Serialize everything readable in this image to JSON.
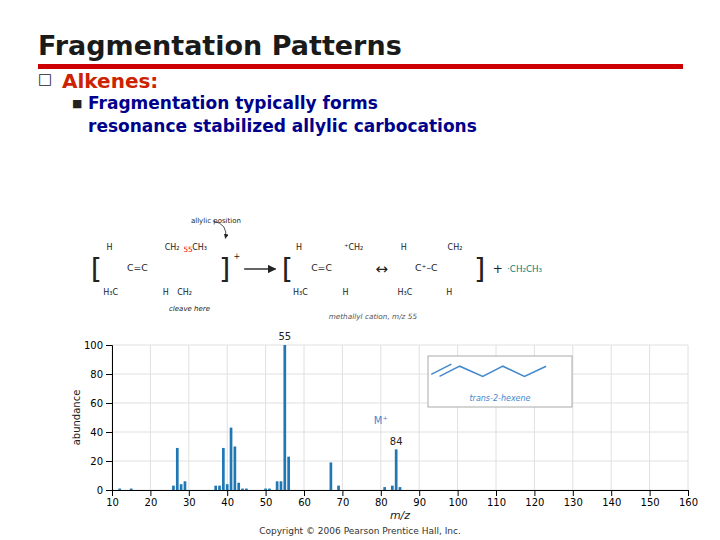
{
  "chart_data": {
    "type": "bar",
    "title": "Fragmentation Patterns",
    "x_label": "m/z",
    "y_label": "abundance",
    "x": [
      12,
      15,
      26,
      27,
      28,
      29,
      37,
      38,
      39,
      40,
      41,
      42,
      43,
      44,
      45,
      50,
      51,
      53,
      54,
      55,
      56,
      67,
      69,
      81,
      83,
      84,
      85
    ],
    "values": [
      1,
      1,
      3,
      29,
      4,
      6,
      3,
      3,
      29,
      4,
      43,
      30,
      5,
      1,
      1,
      1,
      1,
      6,
      6,
      100,
      23,
      19,
      3,
      2,
      3,
      28,
      2
    ],
    "xlim": [
      10,
      160
    ],
    "xticks": [
      10,
      20,
      30,
      40,
      50,
      60,
      70,
      80,
      90,
      100,
      110,
      120,
      130,
      140,
      150,
      160
    ],
    "ylim": [
      0,
      100
    ],
    "yticks": [
      0,
      20,
      40,
      60,
      80,
      100
    ],
    "grid": true,
    "annotations": [
      {
        "text": "□"
      },
      {
        "text": "Alkenes:",
        "color": "#cc2200"
      },
      {
        "text": "■"
      },
      {
        "text": "Fragmentation typically forms",
        "color": "#00008B"
      },
      {
        "text": "resonance stabilized allylic carbocations",
        "color": "#00008B"
      },
      {
        "text": "allylic position"
      },
      {
        "text": "["
      },
      {
        "text": "H"
      },
      {
        "text": "H₃C"
      },
      {
        "text": "C=C"
      },
      {
        "text": "CH₂"
      },
      {
        "text": "55",
        "color": "#ff0000"
      },
      {
        "text": "CH₃"
      },
      {
        "text": "H"
      },
      {
        "text": "CH₂"
      },
      {
        "text": "cleave here"
      },
      {
        "text": "]"
      },
      {
        "text": "+"
      },
      {
        "text": "["
      },
      {
        "text": "H"
      },
      {
        "text": "H₃C"
      },
      {
        "text": "C=C"
      },
      {
        "text": "⁺CH₂"
      },
      {
        "text": "H"
      },
      {
        "text": "↔"
      },
      {
        "text": "H"
      },
      {
        "text": "H₃C"
      },
      {
        "text": "C⁺–C"
      },
      {
        "text": "CH₂"
      },
      {
        "text": "H"
      },
      {
        "text": "]"
      },
      {
        "text": "+"
      },
      {
        "text": "·CH₂CH₃",
        "color": "#008080"
      },
      {
        "text": "methallyl cation, m/z 55"
      },
      {
        "text": "trans-2-hexene",
        "color": "#4488cc"
      },
      {
        "text": "Copyright © 2006 Pearson Prentice Hall, Inc."
      },
      {
        "text": "55",
        "x": 55,
        "y": 102
      },
      {
        "text": "M⁺",
        "x": 80,
        "y": 44,
        "color": "#4488cc"
      },
      {
        "text": "84",
        "x": 84,
        "y": 30
      }
    ]
  }
}
